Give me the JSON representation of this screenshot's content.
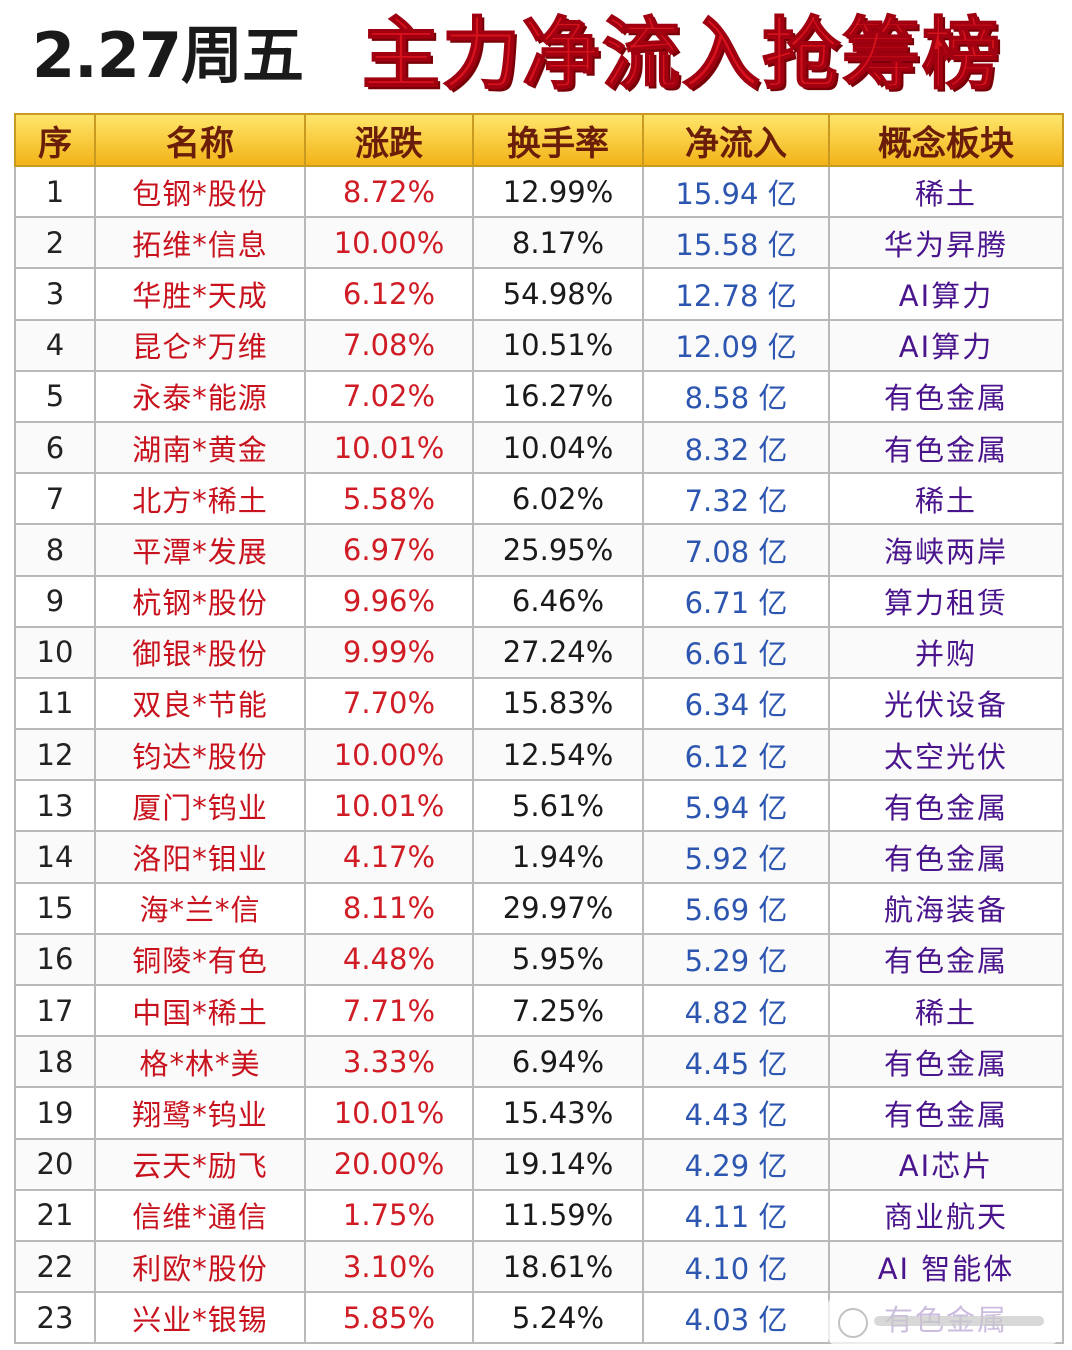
{
  "header": {
    "date": "2.27周五",
    "title": "主力净流入抢筹榜"
  },
  "table": {
    "columns": [
      "序",
      "名称",
      "涨跌",
      "换手率",
      "净流入",
      "概念板块"
    ],
    "rows": [
      {
        "idx": "1",
        "name": "包钢*股份",
        "change": "8.72%",
        "turnover": "12.99%",
        "inflow": "15.94 亿",
        "concept": "稀土"
      },
      {
        "idx": "2",
        "name": "拓维*信息",
        "change": "10.00%",
        "turnover": "8.17%",
        "inflow": "15.58 亿",
        "concept": "华为昇腾"
      },
      {
        "idx": "3",
        "name": "华胜*天成",
        "change": "6.12%",
        "turnover": "54.98%",
        "inflow": "12.78 亿",
        "concept": "AI算力"
      },
      {
        "idx": "4",
        "name": "昆仑*万维",
        "change": "7.08%",
        "turnover": "10.51%",
        "inflow": "12.09 亿",
        "concept": "AI算力"
      },
      {
        "idx": "5",
        "name": "永泰*能源",
        "change": "7.02%",
        "turnover": "16.27%",
        "inflow": "8.58 亿",
        "concept": "有色金属"
      },
      {
        "idx": "6",
        "name": "湖南*黄金",
        "change": "10.01%",
        "turnover": "10.04%",
        "inflow": "8.32 亿",
        "concept": "有色金属"
      },
      {
        "idx": "7",
        "name": "北方*稀土",
        "change": "5.58%",
        "turnover": "6.02%",
        "inflow": "7.32 亿",
        "concept": "稀土"
      },
      {
        "idx": "8",
        "name": "平潭*发展",
        "change": "6.97%",
        "turnover": "25.95%",
        "inflow": "7.08 亿",
        "concept": "海峡两岸"
      },
      {
        "idx": "9",
        "name": "杭钢*股份",
        "change": "9.96%",
        "turnover": "6.46%",
        "inflow": "6.71 亿",
        "concept": "算力租赁"
      },
      {
        "idx": "10",
        "name": "御银*股份",
        "change": "9.99%",
        "turnover": "27.24%",
        "inflow": "6.61 亿",
        "concept": "并购"
      },
      {
        "idx": "11",
        "name": "双良*节能",
        "change": "7.70%",
        "turnover": "15.83%",
        "inflow": "6.34 亿",
        "concept": "光伏设备"
      },
      {
        "idx": "12",
        "name": "钧达*股份",
        "change": "10.00%",
        "turnover": "12.54%",
        "inflow": "6.12 亿",
        "concept": "太空光伏"
      },
      {
        "idx": "13",
        "name": "厦门*钨业",
        "change": "10.01%",
        "turnover": "5.61%",
        "inflow": "5.94 亿",
        "concept": "有色金属"
      },
      {
        "idx": "14",
        "name": "洛阳*钼业",
        "change": "4.17%",
        "turnover": "1.94%",
        "inflow": "5.92 亿",
        "concept": "有色金属"
      },
      {
        "idx": "15",
        "name": "海*兰*信",
        "change": "8.11%",
        "turnover": "29.97%",
        "inflow": "5.69 亿",
        "concept": "航海装备"
      },
      {
        "idx": "16",
        "name": "铜陵*有色",
        "change": "4.48%",
        "turnover": "5.95%",
        "inflow": "5.29 亿",
        "concept": "有色金属"
      },
      {
        "idx": "17",
        "name": "中国*稀土",
        "change": "7.71%",
        "turnover": "7.25%",
        "inflow": "4.82 亿",
        "concept": "稀土"
      },
      {
        "idx": "18",
        "name": "格*林*美",
        "change": "3.33%",
        "turnover": "6.94%",
        "inflow": "4.45 亿",
        "concept": "有色金属"
      },
      {
        "idx": "19",
        "name": "翔鹭*钨业",
        "change": "10.01%",
        "turnover": "15.43%",
        "inflow": "4.43 亿",
        "concept": "有色金属"
      },
      {
        "idx": "20",
        "name": "云天*励飞",
        "change": "20.00%",
        "turnover": "19.14%",
        "inflow": "4.29 亿",
        "concept": "AI芯片"
      },
      {
        "idx": "21",
        "name": "信维*通信",
        "change": "1.75%",
        "turnover": "11.59%",
        "inflow": "4.11 亿",
        "concept": "商业航天"
      },
      {
        "idx": "22",
        "name": "利欧*股份",
        "change": "3.10%",
        "turnover": "18.61%",
        "inflow": "4.10 亿",
        "concept": "AI 智能体"
      },
      {
        "idx": "23",
        "name": "兴业*银锡",
        "change": "5.85%",
        "turnover": "5.24%",
        "inflow": "4.03 亿",
        "concept": "有色金属"
      }
    ]
  },
  "colors": {
    "title_red": "#d8121c",
    "header_gold": "#f2b418",
    "name_red": "#c8131e",
    "inflow_blue": "#2d56b0",
    "concept_purple": "#4a148c"
  }
}
